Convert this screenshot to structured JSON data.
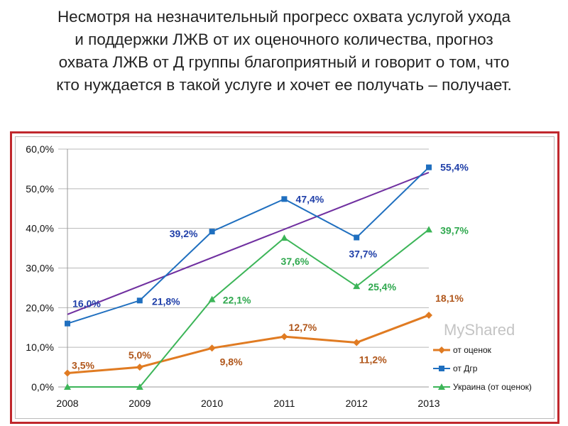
{
  "title_lines": [
    "Несмотря на незначительный прогресс охвата услугой ухода",
    "и поддержки ЛЖВ от их оценочного количества, прогноз",
    "охвата ЛЖВ от Д группы благоприятный и говорит о том, что",
    "кто нуждается в такой услуге и хочет ее получать – получает."
  ],
  "watermark": "MyShared",
  "chart_data": {
    "type": "line",
    "categories": [
      "2008",
      "2009",
      "2010",
      "2011",
      "2012",
      "2013"
    ],
    "ylim": [
      0,
      60
    ],
    "yticks": [
      "0,0%",
      "10,0%",
      "20,0%",
      "30,0%",
      "40,0%",
      "50,0%",
      "60,0%"
    ],
    "grid": true,
    "legend": "bottom-right",
    "series": [
      {
        "name": "от оценок",
        "color": "#e07b22",
        "label_color": "#b0561a",
        "marker": "diamond",
        "values": [
          3.5,
          5.0,
          9.8,
          12.7,
          11.2,
          18.1
        ],
        "labels": [
          "3,5%",
          "5,0%",
          "9,8%",
          "12,7%",
          "11,2%",
          "18,1%"
        ]
      },
      {
        "name": "от Дгр",
        "color": "#1f6fbf",
        "label_color": "#1f3fa8",
        "marker": "square",
        "values": [
          16.0,
          21.8,
          39.2,
          47.4,
          37.7,
          55.4
        ],
        "labels": [
          "16,0%",
          "21,8%",
          "39,2%",
          "47,4%",
          "37,7%",
          "55,4%"
        ]
      },
      {
        "name": "Украина (от оценок)",
        "color": "#3cb558",
        "label_color": "#2fa84e",
        "marker": "triangle",
        "values": [
          0,
          0,
          22.1,
          37.6,
          25.4,
          39.7
        ],
        "labels": [
          "",
          "",
          "22,1%",
          "37,6%",
          "25,4%",
          "39,7%"
        ]
      }
    ],
    "trendline": {
      "color": "#7030a0",
      "values": [
        18.3,
        54.1
      ]
    }
  }
}
